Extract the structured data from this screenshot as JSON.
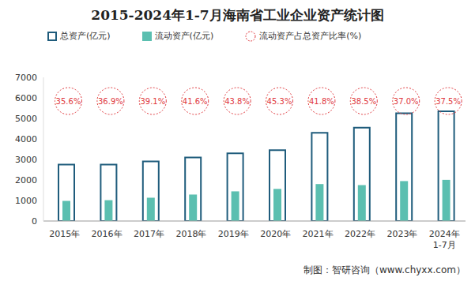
{
  "chart_data": {
    "type": "bar",
    "title": "2015-2024年1-7月海南省工业企业资产统计图",
    "source": "制图：智研咨询（www.chyxx.com）",
    "categories": [
      "2015年",
      "2016年",
      "2017年",
      "2018年",
      "2019年",
      "2020年",
      "2021年",
      "2022年",
      "2023年",
      "2024年\n1-7月"
    ],
    "series": [
      {
        "name": "总资产(亿元)",
        "type": "bar",
        "marker": "hollow",
        "color": "#1f5c7c",
        "values": [
          2750,
          2750,
          2900,
          3100,
          3300,
          3450,
          4300,
          4550,
          5250,
          5350
        ]
      },
      {
        "name": "流动资产(亿元)",
        "type": "bar",
        "marker": "filled",
        "color": "#5bbfb0",
        "values": [
          980,
          1015,
          1135,
          1290,
          1445,
          1565,
          1800,
          1750,
          1945,
          2005
        ]
      },
      {
        "name": "流动资产占总资产比率(%)",
        "type": "label",
        "marker": "circle",
        "line_style": "dashed",
        "color": "#e0393e",
        "values": [
          35.6,
          36.9,
          39.1,
          41.6,
          43.8,
          45.3,
          41.8,
          38.5,
          37.0,
          37.5
        ],
        "value_labels": [
          "35.6%",
          "36.9%",
          "39.1%",
          "41.6%",
          "43.8%",
          "45.3%",
          "41.8%",
          "38.5%",
          "37.0%",
          "37.5%"
        ]
      }
    ],
    "ylim": [
      0,
      7000
    ],
    "yticks": [
      0,
      1000,
      2000,
      3000,
      4000,
      5000,
      6000,
      7000
    ],
    "grid": false,
    "data_labels": false
  }
}
